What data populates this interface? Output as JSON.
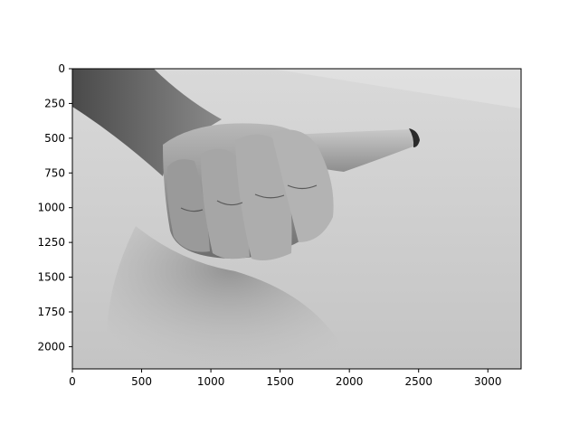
{
  "chart_data": {
    "type": "image",
    "title": "",
    "xlabel": "",
    "ylabel": "",
    "image_content": "grayscale photo of a hand making a thumbs-up gesture, resting sideways on a textured white surface",
    "xlim": [
      0,
      3240
    ],
    "ylim": [
      2160,
      0
    ],
    "y_inverted": true,
    "x_ticks": [
      0,
      500,
      1000,
      1500,
      2000,
      2500,
      3000
    ],
    "x_tick_labels": [
      "0",
      "500",
      "1000",
      "1500",
      "2000",
      "2500",
      "3000"
    ],
    "y_ticks": [
      0,
      250,
      500,
      750,
      1000,
      1250,
      1500,
      1750,
      2000
    ],
    "y_tick_labels": [
      "0",
      "250",
      "500",
      "750",
      "1000",
      "1250",
      "1500",
      "1750",
      "2000"
    ],
    "grid": false,
    "colors": {
      "axis": "#000000",
      "background": "#ffffff",
      "image_light": "#e0e0e0",
      "image_dark": "#3a3a3a"
    }
  }
}
